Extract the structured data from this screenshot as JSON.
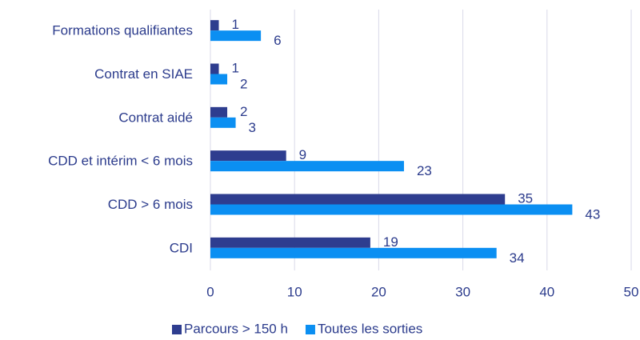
{
  "chart_data": {
    "type": "hbar",
    "categories": [
      "Formations qualifiantes",
      "Contrat en SIAE",
      "Contrat aidé",
      "CDD et intérim < 6 mois",
      "CDD > 6 mois",
      "CDI"
    ],
    "series": [
      {
        "name": "Parcours > 150 h",
        "color": "#2e3d8f",
        "values": [
          1,
          1,
          2,
          9,
          35,
          19
        ]
      },
      {
        "name": "Toutes les sorties",
        "color": "#0b8ff2",
        "values": [
          6,
          2,
          3,
          23,
          43,
          34
        ]
      }
    ],
    "xlim": [
      0,
      50
    ],
    "xticks": [
      0,
      10,
      20,
      30,
      40,
      50
    ],
    "grid": true,
    "legend": "bottom"
  }
}
